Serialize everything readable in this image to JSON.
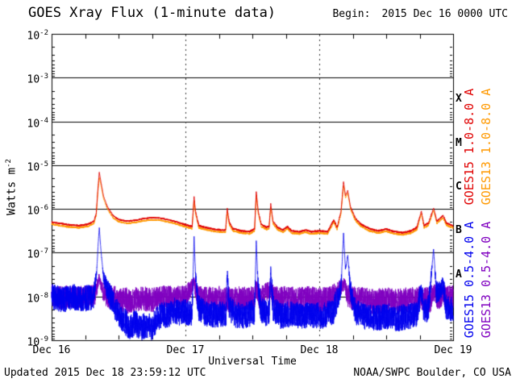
{
  "header": {
    "begin_label": "Begin:",
    "begin_value": "2015 Dec 16 0000 UTC"
  },
  "footer": {
    "updated": "Updated 2015 Dec 18 23:59:12 UTC",
    "source": "NOAA/SWPC Boulder, CO USA"
  },
  "chart_data": {
    "type": "line",
    "title": "GOES Xray Flux (1-minute data)",
    "xlabel": "Universal Time",
    "ylabel": "Watts m^-2",
    "ylabel_base": "Watts m",
    "ylabel_exponent": "-2",
    "x_unit": "hours since 2015 Dec 16 0000 UTC",
    "x_range": [
      0,
      72
    ],
    "x_tick_hours": [
      0,
      24,
      48,
      72
    ],
    "x_tick_labels": [
      "Dec 16",
      "Dec 17",
      "Dec 18",
      "Dec 19"
    ],
    "y_scale": "log10",
    "y_range_log10": [
      -9,
      -2
    ],
    "y_tick_exponents": [
      "-2",
      "-3",
      "-4",
      "-5",
      "-6",
      "-7",
      "-8",
      "-9"
    ],
    "grid": {
      "h_lines_log10": [
        -2,
        -3,
        -4,
        -5,
        -6,
        -7,
        -8,
        -9
      ],
      "v_dashed_hours": [
        24,
        48
      ]
    },
    "flare_class_labels": [
      {
        "letter": "X",
        "log10_mid": -3.5
      },
      {
        "letter": "M",
        "log10_mid": -4.5
      },
      {
        "letter": "C",
        "log10_mid": -5.5
      },
      {
        "letter": "B",
        "log10_mid": -6.5
      },
      {
        "letter": "A",
        "log10_mid": -7.5
      }
    ],
    "series": [
      {
        "id": "goes15-long",
        "name": "GOES15 1.0-8.0 A",
        "color": "#e00000",
        "legend_column": 1,
        "legend_half": "upper",
        "line_width": 1.0,
        "noise": 0.022,
        "noise_off_above_log10": -5.6,
        "noise_ramp": 0.8,
        "noise_min": 0.25,
        "points_hour_log10flux": [
          [
            0,
            -6.3
          ],
          [
            1.5,
            -6.33
          ],
          [
            3,
            -6.36
          ],
          [
            5,
            -6.38
          ],
          [
            6.5,
            -6.35
          ],
          [
            7.6,
            -6.28
          ],
          [
            8,
            -6.1
          ],
          [
            8.3,
            -5.55
          ],
          [
            8.55,
            -5.16
          ],
          [
            8.8,
            -5.35
          ],
          [
            9.3,
            -5.7
          ],
          [
            10,
            -5.95
          ],
          [
            11,
            -6.15
          ],
          [
            12,
            -6.24
          ],
          [
            13.5,
            -6.28
          ],
          [
            15,
            -6.26
          ],
          [
            16.5,
            -6.22
          ],
          [
            18,
            -6.2
          ],
          [
            19.5,
            -6.21
          ],
          [
            21,
            -6.25
          ],
          [
            22.5,
            -6.3
          ],
          [
            24,
            -6.36
          ],
          [
            25.2,
            -6.4
          ],
          [
            25.55,
            -5.72
          ],
          [
            25.8,
            -6.05
          ],
          [
            26.4,
            -6.38
          ],
          [
            27.5,
            -6.42
          ],
          [
            29,
            -6.46
          ],
          [
            30.5,
            -6.48
          ],
          [
            31.2,
            -6.48
          ],
          [
            31.5,
            -5.98
          ],
          [
            31.85,
            -6.3
          ],
          [
            32.5,
            -6.45
          ],
          [
            34,
            -6.5
          ],
          [
            35.5,
            -6.52
          ],
          [
            36.4,
            -6.45
          ],
          [
            36.7,
            -5.6
          ],
          [
            37.05,
            -6.05
          ],
          [
            37.6,
            -6.35
          ],
          [
            38.5,
            -6.42
          ],
          [
            39,
            -6.4
          ],
          [
            39.3,
            -5.88
          ],
          [
            39.7,
            -6.28
          ],
          [
            40.5,
            -6.42
          ],
          [
            41.5,
            -6.48
          ],
          [
            42.3,
            -6.4
          ],
          [
            43,
            -6.5
          ],
          [
            44.5,
            -6.52
          ],
          [
            45.5,
            -6.48
          ],
          [
            46.5,
            -6.52
          ],
          [
            48,
            -6.5
          ],
          [
            49.5,
            -6.52
          ],
          [
            50.6,
            -6.25
          ],
          [
            51.2,
            -6.42
          ],
          [
            51.9,
            -6.05
          ],
          [
            52.35,
            -5.38
          ],
          [
            52.7,
            -5.7
          ],
          [
            53.1,
            -5.58
          ],
          [
            53.6,
            -5.95
          ],
          [
            54.5,
            -6.22
          ],
          [
            55.5,
            -6.35
          ],
          [
            57,
            -6.45
          ],
          [
            58.5,
            -6.5
          ],
          [
            60,
            -6.46
          ],
          [
            61.5,
            -6.52
          ],
          [
            63,
            -6.54
          ],
          [
            64.5,
            -6.5
          ],
          [
            65.5,
            -6.42
          ],
          [
            66.3,
            -6.05
          ],
          [
            66.8,
            -6.38
          ],
          [
            67.6,
            -6.32
          ],
          [
            68.5,
            -5.98
          ],
          [
            69.1,
            -6.28
          ],
          [
            70.2,
            -6.15
          ],
          [
            70.8,
            -6.32
          ],
          [
            71.5,
            -6.36
          ],
          [
            72,
            -6.38
          ]
        ]
      },
      {
        "id": "goes13-long",
        "name": "GOES13 1.0-8.0 A",
        "color": "#ff9900",
        "legend_column": 2,
        "legend_half": "upper",
        "line_width": 1.0,
        "noise": 0.022,
        "noise_off_above_log10": -5.6,
        "noise_ramp": 0.8,
        "noise_min": 0.25,
        "points_hour_log10flux": [
          [
            0,
            -6.35
          ],
          [
            1.5,
            -6.38
          ],
          [
            3,
            -6.41
          ],
          [
            5,
            -6.43
          ],
          [
            6.5,
            -6.4
          ],
          [
            7.6,
            -6.33
          ],
          [
            8,
            -6.15
          ],
          [
            8.3,
            -5.62
          ],
          [
            8.55,
            -5.28
          ],
          [
            8.8,
            -5.42
          ],
          [
            9.3,
            -5.76
          ],
          [
            10,
            -6.0
          ],
          [
            11,
            -6.2
          ],
          [
            12,
            -6.29
          ],
          [
            13.5,
            -6.33
          ],
          [
            15,
            -6.31
          ],
          [
            16.5,
            -6.27
          ],
          [
            18,
            -6.25
          ],
          [
            19.5,
            -6.26
          ],
          [
            21,
            -6.3
          ],
          [
            22.5,
            -6.35
          ],
          [
            24,
            -6.41
          ],
          [
            25.2,
            -6.45
          ],
          [
            25.55,
            -5.8
          ],
          [
            25.8,
            -6.1
          ],
          [
            26.4,
            -6.43
          ],
          [
            27.5,
            -6.47
          ],
          [
            29,
            -6.51
          ],
          [
            30.5,
            -6.53
          ],
          [
            31.2,
            -6.53
          ],
          [
            31.5,
            -6.05
          ],
          [
            31.85,
            -6.35
          ],
          [
            32.5,
            -6.5
          ],
          [
            34,
            -6.55
          ],
          [
            35.5,
            -6.57
          ],
          [
            36.4,
            -6.5
          ],
          [
            36.7,
            -5.68
          ],
          [
            37.05,
            -6.1
          ],
          [
            37.6,
            -6.4
          ],
          [
            38.5,
            -6.47
          ],
          [
            39,
            -6.45
          ],
          [
            39.3,
            -5.95
          ],
          [
            39.7,
            -6.33
          ],
          [
            40.5,
            -6.47
          ],
          [
            41.5,
            -6.53
          ],
          [
            42.3,
            -6.45
          ],
          [
            43,
            -6.55
          ],
          [
            44.5,
            -6.57
          ],
          [
            45.5,
            -6.53
          ],
          [
            46.5,
            -6.57
          ],
          [
            48,
            -6.55
          ],
          [
            49.5,
            -6.57
          ],
          [
            50.6,
            -6.3
          ],
          [
            51.2,
            -6.47
          ],
          [
            51.9,
            -6.1
          ],
          [
            52.35,
            -5.46
          ],
          [
            52.7,
            -5.75
          ],
          [
            53.1,
            -5.64
          ],
          [
            53.6,
            -6.0
          ],
          [
            54.5,
            -6.27
          ],
          [
            55.5,
            -6.4
          ],
          [
            57,
            -6.5
          ],
          [
            58.5,
            -6.55
          ],
          [
            60,
            -6.51
          ],
          [
            61.5,
            -6.57
          ],
          [
            63,
            -6.59
          ],
          [
            64.5,
            -6.55
          ],
          [
            65.5,
            -6.47
          ],
          [
            66.3,
            -6.1
          ],
          [
            66.8,
            -6.43
          ],
          [
            67.6,
            -6.37
          ],
          [
            68.5,
            -6.03
          ],
          [
            69.1,
            -6.33
          ],
          [
            70.2,
            -6.2
          ],
          [
            70.8,
            -6.37
          ],
          [
            71.5,
            -6.41
          ],
          [
            72,
            -6.43
          ]
        ]
      },
      {
        "id": "goes15-short",
        "name": "GOES15 0.5-4.0 A",
        "color": "#0000ee",
        "legend_column": 1,
        "legend_half": "lower",
        "line_width": 0.8,
        "noise": 0.3,
        "noise_off_above_log10": -7.2,
        "noise_ramp": 0.8,
        "noise_min": 0.06,
        "points_hour_log10flux": [
          [
            0,
            -8.0
          ],
          [
            2,
            -8.08
          ],
          [
            4,
            -8.02
          ],
          [
            6,
            -8.05
          ],
          [
            7.6,
            -8.0
          ],
          [
            8.1,
            -7.4
          ],
          [
            8.35,
            -6.8
          ],
          [
            8.55,
            -6.42
          ],
          [
            8.85,
            -6.95
          ],
          [
            9.3,
            -7.55
          ],
          [
            10,
            -7.85
          ],
          [
            11,
            -8.15
          ],
          [
            12,
            -8.4
          ],
          [
            13,
            -8.55
          ],
          [
            14,
            -8.7
          ],
          [
            15,
            -8.6
          ],
          [
            16,
            -8.72
          ],
          [
            17,
            -8.65
          ],
          [
            18,
            -8.7
          ],
          [
            19,
            -8.5
          ],
          [
            20,
            -8.4
          ],
          [
            21,
            -8.45
          ],
          [
            22,
            -8.32
          ],
          [
            23,
            -8.38
          ],
          [
            24,
            -8.35
          ],
          [
            25.2,
            -8.4
          ],
          [
            25.55,
            -6.62
          ],
          [
            25.8,
            -7.5
          ],
          [
            26.3,
            -8.25
          ],
          [
            27.5,
            -8.38
          ],
          [
            29,
            -8.42
          ],
          [
            30.5,
            -8.4
          ],
          [
            31.3,
            -8.38
          ],
          [
            31.5,
            -7.45
          ],
          [
            31.8,
            -8.25
          ],
          [
            33,
            -8.42
          ],
          [
            34.5,
            -8.45
          ],
          [
            36.4,
            -8.35
          ],
          [
            36.7,
            -6.72
          ],
          [
            37,
            -7.7
          ],
          [
            37.5,
            -8.3
          ],
          [
            38.5,
            -8.4
          ],
          [
            39,
            -8.35
          ],
          [
            39.3,
            -7.35
          ],
          [
            39.7,
            -8.25
          ],
          [
            41,
            -8.45
          ],
          [
            43,
            -8.4
          ],
          [
            45,
            -8.45
          ],
          [
            47,
            -8.42
          ],
          [
            48.5,
            -8.45
          ],
          [
            50.5,
            -8.35
          ],
          [
            51.9,
            -7.8
          ],
          [
            52.35,
            -6.55
          ],
          [
            52.7,
            -7.4
          ],
          [
            53.1,
            -7.05
          ],
          [
            53.6,
            -7.85
          ],
          [
            54.5,
            -8.35
          ],
          [
            56,
            -8.45
          ],
          [
            58,
            -8.5
          ],
          [
            60,
            -8.45
          ],
          [
            62,
            -8.5
          ],
          [
            64,
            -8.45
          ],
          [
            65.5,
            -8.4
          ],
          [
            66.3,
            -7.85
          ],
          [
            66.8,
            -8.35
          ],
          [
            67.6,
            -8.25
          ],
          [
            68.5,
            -6.9
          ],
          [
            69,
            -7.95
          ],
          [
            70.2,
            -7.75
          ],
          [
            70.8,
            -8.25
          ],
          [
            71.5,
            -8.28
          ],
          [
            72,
            -8.3
          ]
        ]
      },
      {
        "id": "goes13-short",
        "name": "GOES13 0.5-4.0 A",
        "color": "#8000c0",
        "legend_column": 2,
        "legend_half": "lower",
        "line_width": 0.8,
        "noise": 0.3,
        "noise_off_above_log10": -7.3,
        "noise_ramp": 0.8,
        "noise_min": 0.3,
        "points_hour_log10flux": [
          [
            0,
            -7.98
          ],
          [
            2,
            -8.04
          ],
          [
            4,
            -8.0
          ],
          [
            6,
            -8.02
          ],
          [
            7.8,
            -7.98
          ],
          [
            8.55,
            -7.55
          ],
          [
            9.2,
            -7.9
          ],
          [
            10,
            -8.0
          ],
          [
            12,
            -8.06
          ],
          [
            14,
            -8.1
          ],
          [
            16,
            -8.04
          ],
          [
            18,
            -8.08
          ],
          [
            20,
            -8.0
          ],
          [
            22,
            -8.05
          ],
          [
            24,
            -8.0
          ],
          [
            25.55,
            -7.7
          ],
          [
            26.2,
            -8.02
          ],
          [
            28,
            -8.06
          ],
          [
            30,
            -8.03
          ],
          [
            32,
            -8.08
          ],
          [
            34,
            -8.04
          ],
          [
            36.4,
            -8.06
          ],
          [
            36.7,
            -7.8
          ],
          [
            37.2,
            -8.02
          ],
          [
            39.3,
            -7.85
          ],
          [
            40,
            -8.05
          ],
          [
            42,
            -8.03
          ],
          [
            44,
            -8.08
          ],
          [
            46,
            -8.04
          ],
          [
            48,
            -8.08
          ],
          [
            50,
            -8.04
          ],
          [
            52.35,
            -7.72
          ],
          [
            53.2,
            -8.0
          ],
          [
            54,
            -8.04
          ],
          [
            56,
            -8.08
          ],
          [
            58,
            -8.12
          ],
          [
            60,
            -8.08
          ],
          [
            62,
            -8.12
          ],
          [
            64,
            -8.08
          ],
          [
            66,
            -8.04
          ],
          [
            68,
            -8.08
          ],
          [
            68.5,
            -7.88
          ],
          [
            69.2,
            -8.04
          ],
          [
            70.2,
            -7.98
          ],
          [
            71,
            -8.02
          ],
          [
            72,
            -8.0
          ]
        ]
      }
    ]
  }
}
